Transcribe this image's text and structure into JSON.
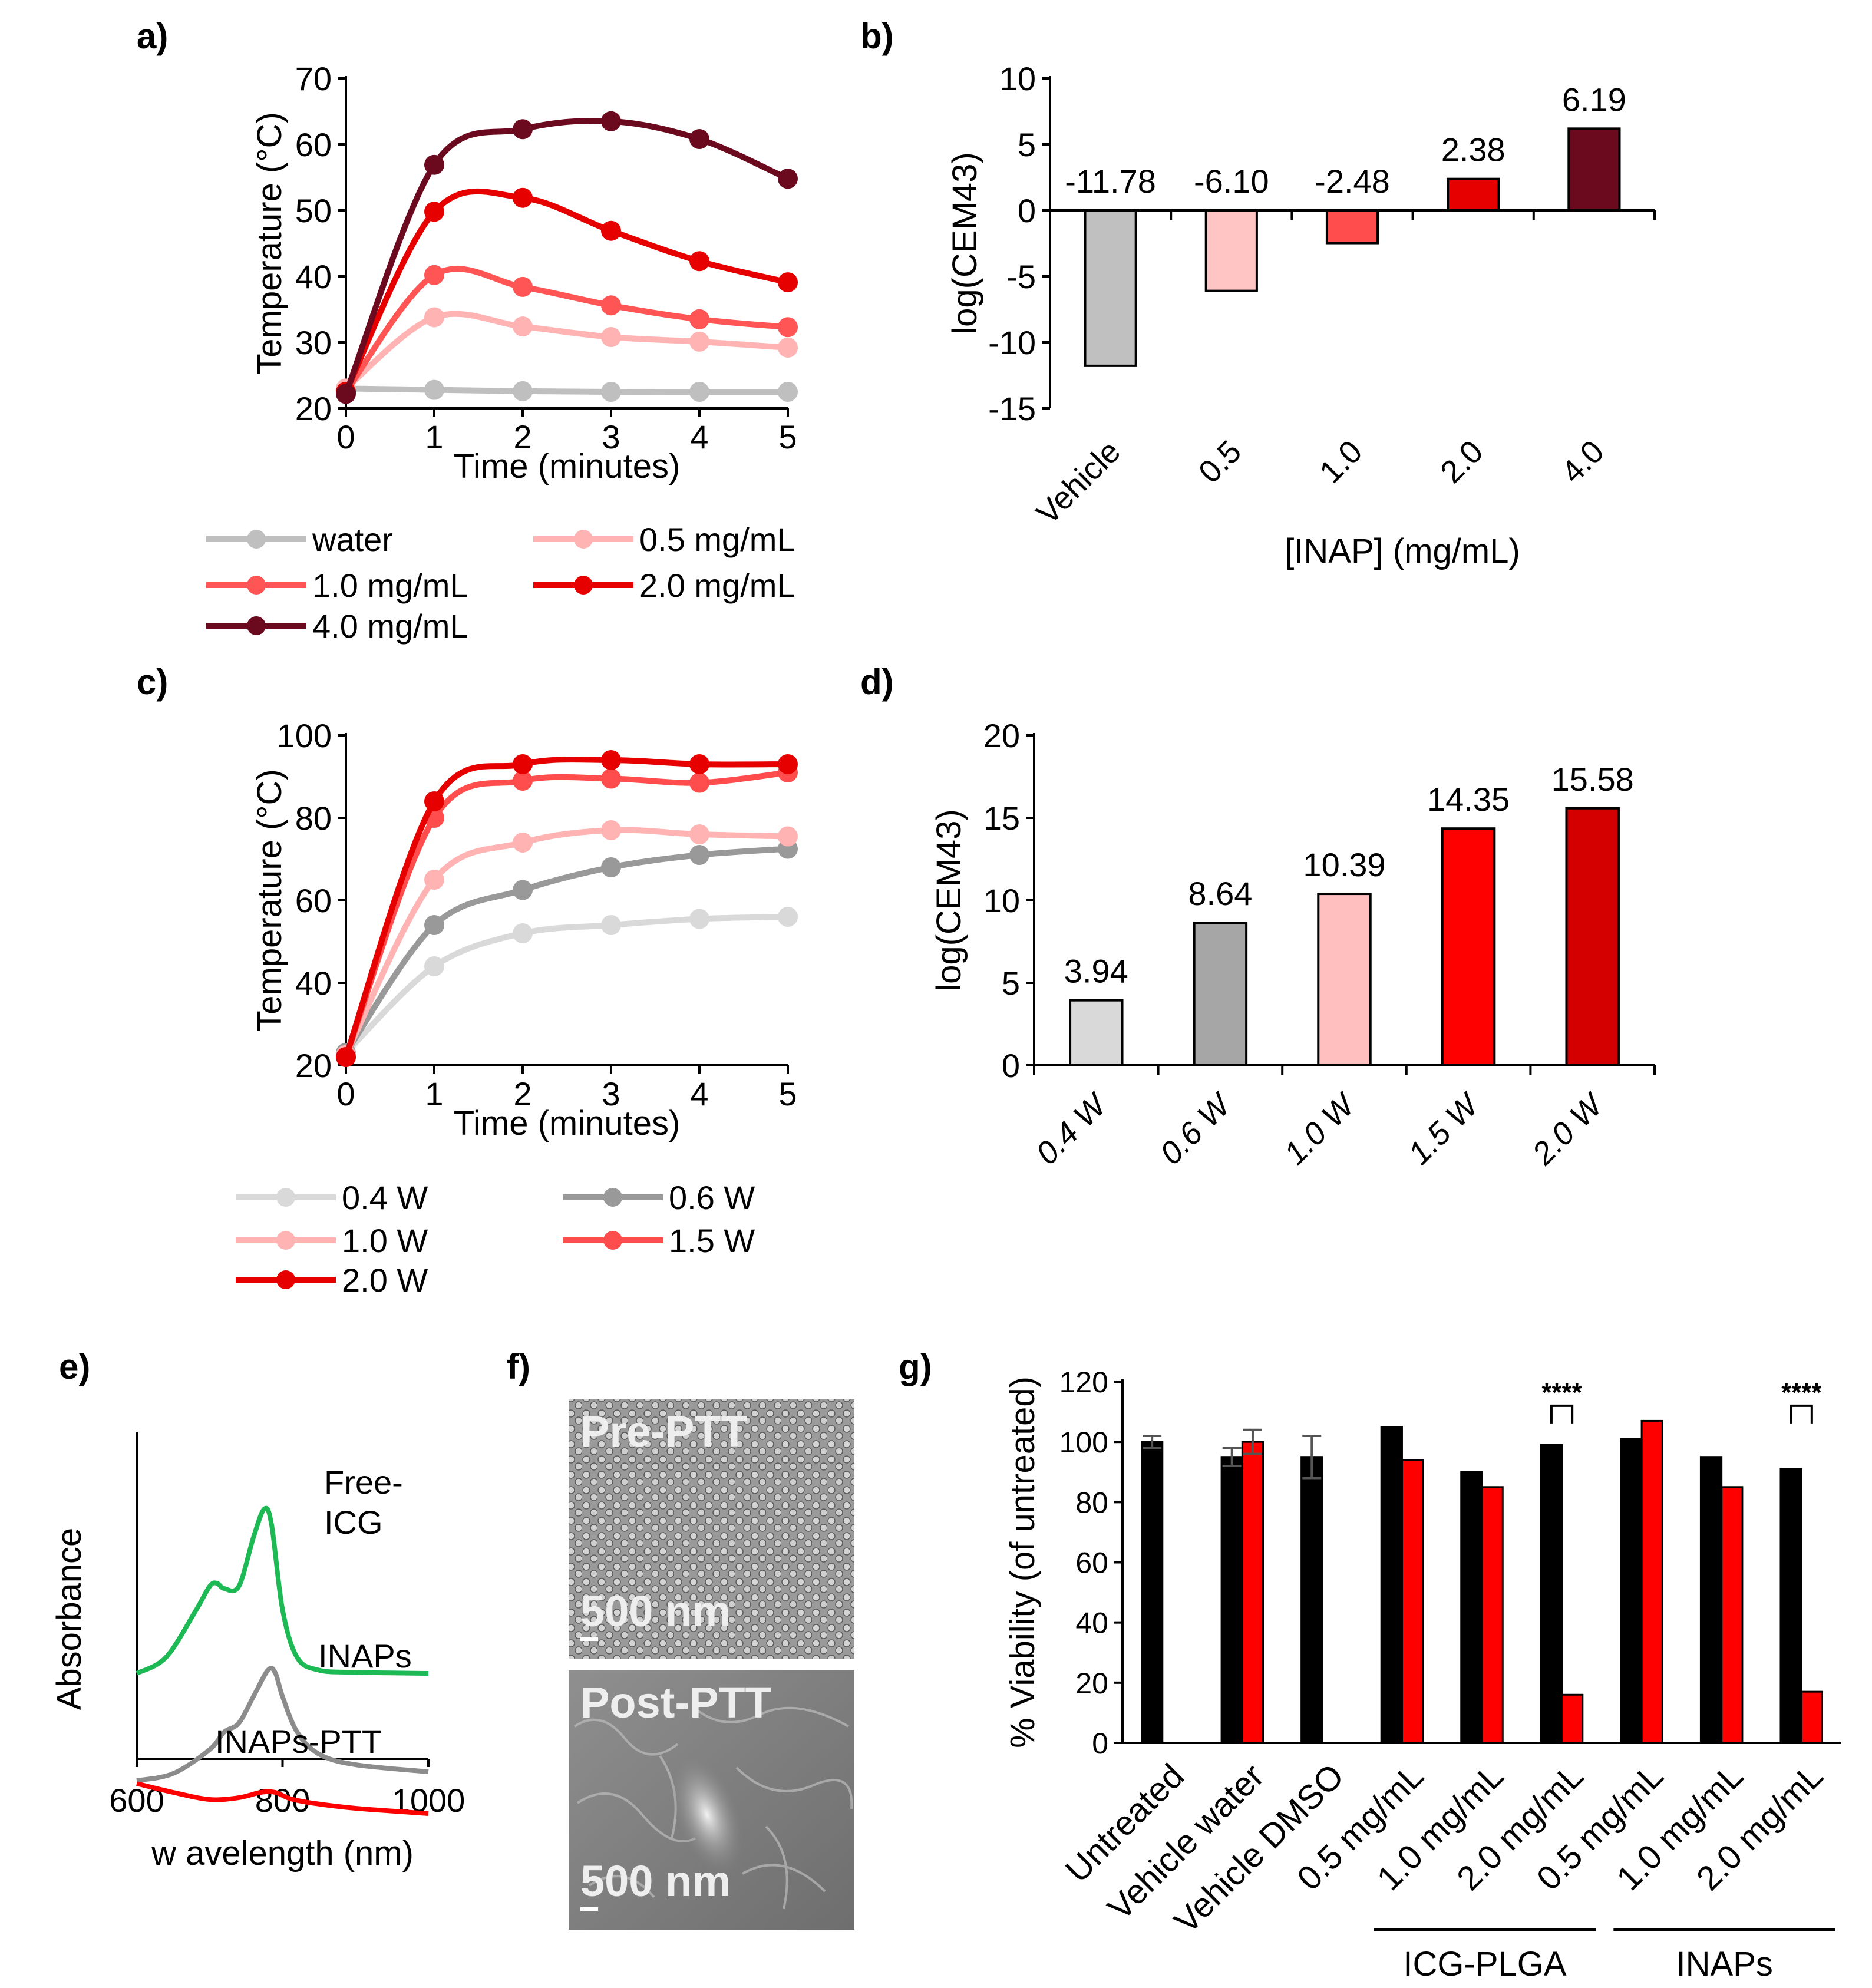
{
  "chart_data": [
    {
      "id": "a",
      "panel_label": "a)",
      "type": "line",
      "xlabel": "Time  (minutes)",
      "ylabel": "Temperature (°C)",
      "x": [
        0,
        1,
        2,
        3,
        4,
        5
      ],
      "xlim": [
        0,
        5
      ],
      "ylim": [
        20,
        70
      ],
      "yticks": [
        20,
        30,
        40,
        50,
        60,
        70
      ],
      "legend": "bottom",
      "series": [
        {
          "name": "water",
          "color": "#bfbfbf",
          "values": [
            23,
            22.8,
            22.6,
            22.5,
            22.5,
            22.5
          ]
        },
        {
          "name": "0.5 mg/mL",
          "color": "#ffb3b3",
          "values": [
            23,
            33.8,
            32.4,
            30.8,
            30.1,
            29.2
          ]
        },
        {
          "name": "1.0 mg/mL",
          "color": "#ff5555",
          "values": [
            22.5,
            40.2,
            38.4,
            35.6,
            33.5,
            32.3
          ]
        },
        {
          "name": "2.0 mg/mL",
          "color": "#e60000",
          "values": [
            22.5,
            49.8,
            51.9,
            46.9,
            42.3,
            39.1
          ]
        },
        {
          "name": "4.0 mg/mL",
          "color": "#6b0a1e",
          "values": [
            22.2,
            56.9,
            62.3,
            63.5,
            60.8,
            54.8
          ]
        }
      ]
    },
    {
      "id": "b",
      "panel_label": "b)",
      "type": "bar",
      "xlabel": "[INAP]  (mg/mL)",
      "ylabel": "log(CEM43)",
      "categories": [
        "Vehicle",
        "0.5",
        "1.0",
        "2.0",
        "4.0"
      ],
      "values": [
        -11.78,
        -6.1,
        -2.48,
        2.38,
        6.19
      ],
      "value_labels": [
        "-11.78",
        "-6.10",
        "-2.48",
        "2.38",
        "6.19"
      ],
      "colors": [
        "#c0c0c0",
        "#ffc4c4",
        "#ff4d4d",
        "#e60000",
        "#6b0a1e"
      ],
      "ylim": [
        -15,
        10
      ],
      "yticks": [
        10,
        5,
        0,
        -5,
        -10,
        -15
      ],
      "ytick_labels": [
        "10",
        "5",
        "0",
        "-5",
        "-10",
        "-15"
      ]
    },
    {
      "id": "c",
      "panel_label": "c)",
      "type": "line",
      "xlabel": "Time  (minutes)",
      "ylabel": "Temperature (°C)",
      "x": [
        0,
        1,
        2,
        3,
        4,
        5
      ],
      "xlim": [
        0,
        5
      ],
      "ylim": [
        20,
        100
      ],
      "yticks": [
        20,
        40,
        60,
        80,
        100
      ],
      "legend": "bottom",
      "series": [
        {
          "name": "0.4 W",
          "color": "#d9d9d9",
          "values": [
            23,
            44,
            52,
            54,
            55.5,
            56
          ]
        },
        {
          "name": "0.6 W",
          "color": "#999999",
          "values": [
            23,
            54,
            62.5,
            68,
            71,
            72.5
          ]
        },
        {
          "name": "1.0 W",
          "color": "#ffb3b3",
          "values": [
            22.5,
            65,
            74,
            77,
            76,
            75.5
          ]
        },
        {
          "name": "1.5 W",
          "color": "#ff4d4d",
          "values": [
            22,
            80,
            89,
            89.5,
            88.5,
            91
          ]
        },
        {
          "name": "2.0 W",
          "color": "#e60000",
          "values": [
            22,
            84,
            93,
            94,
            93,
            93
          ]
        }
      ]
    },
    {
      "id": "d",
      "panel_label": "d)",
      "type": "bar",
      "xlabel": "",
      "ylabel": "log(CEM43)",
      "categories": [
        "0.4 W",
        "0.6 W",
        "1.0 W",
        "1.5 W",
        "2.0 W"
      ],
      "values": [
        3.94,
        8.64,
        10.39,
        14.35,
        15.58
      ],
      "value_labels": [
        "3.94",
        "8.64",
        "10.39",
        "14.35",
        "15.58"
      ],
      "colors": [
        "#d9d9d9",
        "#a6a6a6",
        "#ffbfbf",
        "#ff0000",
        "#d40000"
      ],
      "ylim": [
        0,
        20
      ],
      "yticks": [
        0,
        5,
        10,
        15,
        20
      ]
    },
    {
      "id": "e",
      "panel_label": "e)",
      "type": "line",
      "xlabel": "w avelength (nm)",
      "ylabel": "Absorbance",
      "xlim": [
        600,
        1000
      ],
      "xticks": [
        600,
        800,
        1000
      ],
      "series": [
        {
          "name": "Free-ICG",
          "label_lines": [
            "Free-",
            "ICG"
          ],
          "color": "#1db954",
          "x": [
            600,
            640,
            680,
            700,
            710,
            720,
            740,
            760,
            775,
            785,
            800,
            820,
            850,
            900,
            1000
          ],
          "y": [
            0.0,
            0.15,
            0.58,
            0.82,
            0.85,
            0.8,
            0.82,
            1.28,
            1.55,
            1.4,
            0.6,
            0.15,
            0.03,
            0.01,
            0.0
          ]
        },
        {
          "name": "INAPs",
          "label_lines": [
            "INAPs"
          ],
          "color": "#8c8c8c",
          "x": [
            600,
            650,
            700,
            720,
            740,
            760,
            780,
            790,
            800,
            820,
            850,
            900,
            1000
          ],
          "y": [
            0.0,
            0.08,
            0.35,
            0.55,
            0.65,
            0.95,
            1.25,
            1.22,
            0.95,
            0.55,
            0.3,
            0.18,
            0.1
          ]
        },
        {
          "name": "INAPs-PTT",
          "label_lines": [
            "INAPs-PTT"
          ],
          "color": "#ff0000",
          "x": [
            600,
            650,
            700,
            740,
            770,
            790,
            810,
            840,
            900,
            1000
          ],
          "y": [
            0.22,
            0.12,
            0.04,
            0.06,
            0.12,
            0.12,
            0.05,
            0.0,
            -0.06,
            -0.12
          ]
        }
      ]
    },
    {
      "id": "g",
      "panel_label": "g)",
      "type": "bar",
      "ylabel": "% Viability (of untreated)",
      "categories": [
        "Untreated",
        "Vehicle water",
        "Vehicle DMSO",
        "0.5 mg/mL",
        "1.0 mg/mL",
        "2.0 mg/mL",
        "0.5 mg/mL",
        "1.0 mg/mL",
        "2.0 mg/mL"
      ],
      "ylim": [
        0,
        120
      ],
      "yticks": [
        0,
        20,
        40,
        60,
        80,
        100,
        120
      ],
      "series": [
        {
          "name": "black",
          "color": "#000000",
          "values": [
            100,
            95,
            95,
            105,
            90,
            99,
            101,
            95,
            91
          ],
          "errors": [
            2,
            3,
            7,
            null,
            null,
            null,
            null,
            null,
            null
          ]
        },
        {
          "name": "red",
          "color": "#ff0000",
          "values": [
            null,
            100,
            null,
            94,
            85,
            16,
            107,
            85,
            17
          ],
          "errors": [
            null,
            4,
            null,
            null,
            null,
            null,
            null,
            null,
            null
          ]
        }
      ],
      "groups": [
        {
          "label": "ICG-PLGA",
          "from": 3,
          "to": 5
        },
        {
          "label": "INAPs",
          "from": 6,
          "to": 8
        }
      ],
      "significance": [
        {
          "category": 5,
          "label": "****"
        },
        {
          "category": 8,
          "label": "****"
        }
      ]
    }
  ],
  "panel_f": {
    "panel_label": "f)",
    "images": [
      {
        "caption": "Pre-PTT",
        "scale_bar": "500 nm"
      },
      {
        "caption": "Post-PTT",
        "scale_bar": "500 nm"
      }
    ]
  }
}
